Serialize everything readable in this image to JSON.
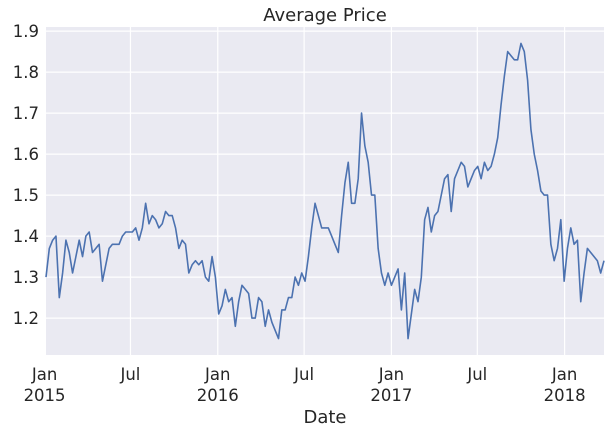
{
  "chart_data": {
    "type": "line",
    "title": "Average Price",
    "xlabel": "Date",
    "ylabel": "",
    "xlim": [
      "2015-01-04",
      "2018-03-25"
    ],
    "ylim": [
      1.11,
      1.91
    ],
    "grid": true,
    "legend": "none",
    "colors": {
      "background": "#EAEAF2",
      "grid": "#FFFFFF",
      "line": "#4C72B0",
      "text": "#262626"
    },
    "yticks": [
      "1.2",
      "1.3",
      "1.4",
      "1.5",
      "1.6",
      "1.7",
      "1.8",
      "1.9"
    ],
    "xticks": [
      {
        "date": "2015-01-01",
        "label": "Jan",
        "sub": "2015"
      },
      {
        "date": "2015-07-01",
        "label": "Jul",
        "sub": ""
      },
      {
        "date": "2016-01-01",
        "label": "Jan",
        "sub": "2016"
      },
      {
        "date": "2016-07-01",
        "label": "Jul",
        "sub": ""
      },
      {
        "date": "2017-01-01",
        "label": "Jan",
        "sub": "2017"
      },
      {
        "date": "2017-07-01",
        "label": "Jul",
        "sub": ""
      },
      {
        "date": "2018-01-01",
        "label": "Jan",
        "sub": "2018"
      }
    ],
    "series": [
      {
        "start": "2015-01-04",
        "interval_days": 7,
        "values": [
          1.3,
          1.37,
          1.39,
          1.4,
          1.25,
          1.31,
          1.39,
          1.36,
          1.31,
          1.35,
          1.39,
          1.35,
          1.4,
          1.41,
          1.36,
          1.37,
          1.38,
          1.29,
          1.33,
          1.37,
          1.38,
          1.38,
          1.38,
          1.4,
          1.41,
          1.41,
          1.41,
          1.42,
          1.39,
          1.42,
          1.48,
          1.43,
          1.45,
          1.44,
          1.42,
          1.43,
          1.46,
          1.45,
          1.45,
          1.42,
          1.37,
          1.39,
          1.38,
          1.31,
          1.33,
          1.34,
          1.33,
          1.34,
          1.3,
          1.29,
          1.35,
          1.3,
          1.21,
          1.23,
          1.27,
          1.24,
          1.25,
          1.18,
          1.24,
          1.28,
          1.27,
          1.26,
          1.2,
          1.2,
          1.25,
          1.24,
          1.18,
          1.22,
          1.19,
          1.17,
          1.15,
          1.22,
          1.22,
          1.25,
          1.25,
          1.3,
          1.28,
          1.31,
          1.29,
          1.35,
          1.42,
          1.48,
          1.45,
          1.42,
          1.42,
          1.42,
          1.4,
          1.38,
          1.36,
          1.45,
          1.53,
          1.58,
          1.48,
          1.48,
          1.54,
          1.7,
          1.62,
          1.58,
          1.5,
          1.5,
          1.37,
          1.31,
          1.28,
          1.31,
          1.28,
          1.3,
          1.32,
          1.22,
          1.31,
          1.15,
          1.21,
          1.27,
          1.24,
          1.3,
          1.44,
          1.47,
          1.41,
          1.45,
          1.46,
          1.5,
          1.54,
          1.55,
          1.46,
          1.54,
          1.56,
          1.58,
          1.57,
          1.52,
          1.54,
          1.56,
          1.57,
          1.54,
          1.58,
          1.56,
          1.57,
          1.6,
          1.64,
          1.72,
          1.79,
          1.85,
          1.84,
          1.83,
          1.83,
          1.87,
          1.85,
          1.78,
          1.66,
          1.6,
          1.56,
          1.51,
          1.5,
          1.5,
          1.38,
          1.34,
          1.37,
          1.44,
          1.29,
          1.37,
          1.42,
          1.38,
          1.39,
          1.24,
          1.31,
          1.37,
          1.36,
          1.35,
          1.34,
          1.31,
          1.34
        ]
      }
    ]
  }
}
